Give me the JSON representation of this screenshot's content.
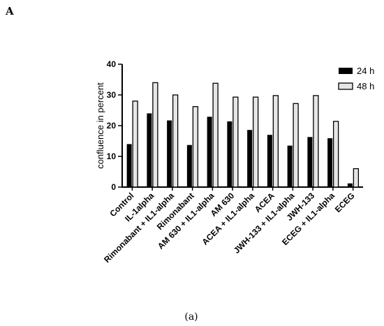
{
  "panel_label": "A",
  "caption": "(a)",
  "chart_data": {
    "type": "bar",
    "ylabel": "confluence in percent",
    "xlabel": "",
    "ylim": [
      0,
      40
    ],
    "yticks": [
      0,
      10,
      20,
      30,
      40
    ],
    "legend_position": "top-right",
    "categories": [
      "Control",
      "IL-1alpha",
      "Rimonabant + IL1-alpha",
      "Rimonabant",
      "AM 630 + IL1-alpha",
      "AM 630",
      "ACEA + IL1-alpha",
      "ACEA",
      "JWH-133 + IL1-alpha",
      "JWH-133",
      "ECEG + IL1-alpha",
      "ECEG"
    ],
    "series": [
      {
        "name": "24 h",
        "color": "#000000",
        "values": [
          14,
          24,
          21.7,
          13.7,
          22.9,
          21.4,
          18.6,
          17.0,
          13.5,
          16.3,
          15.9,
          1.2
        ]
      },
      {
        "name": "48 h",
        "color": "#e6e6e6",
        "values": [
          28,
          34,
          30,
          26.2,
          33.8,
          29.3,
          29.3,
          29.8,
          27.2,
          29.8,
          21.4,
          6
        ]
      }
    ]
  }
}
